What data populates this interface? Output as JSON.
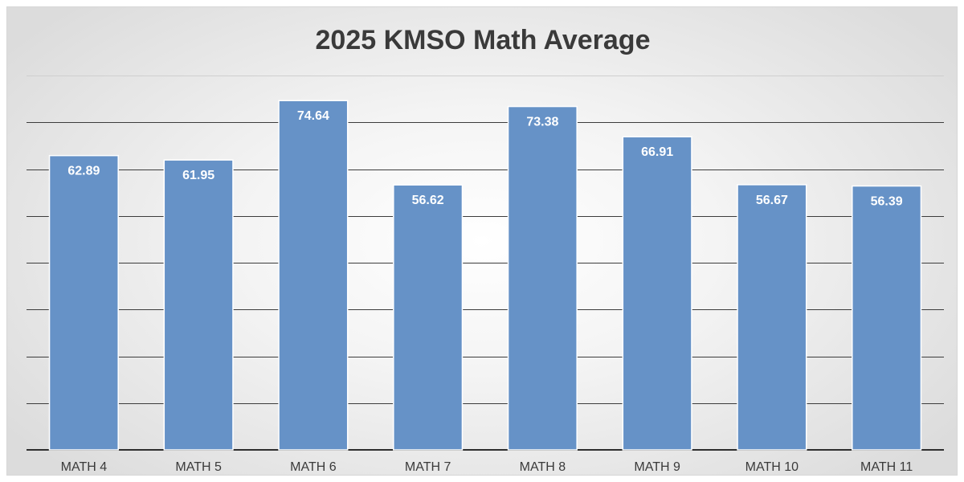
{
  "chart_data": {
    "type": "bar",
    "title": "2025 KMSO Math Average",
    "xlabel": "",
    "ylabel": "",
    "categories": [
      "MATH 4",
      "MATH 5",
      "MATH 6",
      "MATH 7",
      "MATH 8",
      "MATH 9",
      "MATH 10",
      "MATH 11"
    ],
    "values": [
      62.89,
      61.95,
      74.64,
      56.62,
      73.38,
      66.91,
      56.67,
      56.39
    ],
    "ylim": [
      0,
      80
    ],
    "ytick_step": 10,
    "grid": true,
    "legend": "none",
    "colors": {
      "bar": "#6692c7",
      "bar_label": "#ffffff",
      "title": "#3a3a3a"
    }
  }
}
